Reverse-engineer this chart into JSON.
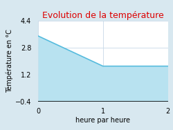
{
  "title": "Evolution de la température",
  "xlabel": "heure par heure",
  "ylabel": "Témpérature en °C",
  "x": [
    0,
    1,
    1,
    2
  ],
  "y": [
    3.5,
    1.7,
    1.7,
    1.7
  ],
  "fill_color": "#b8e2f0",
  "fill_alpha": 1.0,
  "line_color": "#55bbdd",
  "line_width": 1.2,
  "ylim": [
    -0.4,
    4.4
  ],
  "xlim": [
    0,
    2
  ],
  "yticks": [
    -0.4,
    1.2,
    2.8,
    4.4
  ],
  "xticks": [
    0,
    1,
    2
  ],
  "title_color": "#dd0000",
  "title_fontsize": 9,
  "axis_label_fontsize": 7,
  "tick_fontsize": 7,
  "bg_color": "#d8e8f0",
  "plot_bg_color": "#ffffff",
  "grid_color": "#c8d8e8",
  "baseline": -0.4
}
